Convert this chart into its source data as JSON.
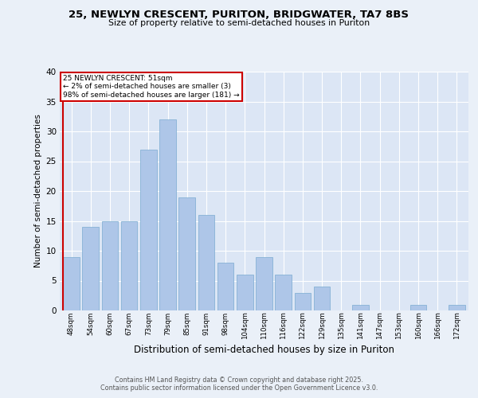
{
  "title1": "25, NEWLYN CRESCENT, PURITON, BRIDGWATER, TA7 8BS",
  "title2": "Size of property relative to semi-detached houses in Puriton",
  "xlabel": "Distribution of semi-detached houses by size in Puriton",
  "ylabel": "Number of semi-detached properties",
  "footer1": "Contains HM Land Registry data © Crown copyright and database right 2025.",
  "footer2": "Contains public sector information licensed under the Open Government Licence v3.0.",
  "annotation_title": "25 NEWLYN CRESCENT: 51sqm",
  "annotation_line2": "← 2% of semi-detached houses are smaller (3)",
  "annotation_line3": "98% of semi-detached houses are larger (181) →",
  "bar_labels": [
    "48sqm",
    "54sqm",
    "60sqm",
    "67sqm",
    "73sqm",
    "79sqm",
    "85sqm",
    "91sqm",
    "98sqm",
    "104sqm",
    "110sqm",
    "116sqm",
    "122sqm",
    "129sqm",
    "135sqm",
    "141sqm",
    "147sqm",
    "153sqm",
    "160sqm",
    "166sqm",
    "172sqm"
  ],
  "bar_values": [
    9,
    14,
    15,
    15,
    27,
    32,
    19,
    16,
    8,
    6,
    9,
    6,
    3,
    4,
    0,
    1,
    0,
    0,
    1,
    0,
    1
  ],
  "bar_color": "#aec6e8",
  "bar_edge_color": "#7aaad0",
  "highlight_color": "#cc0000",
  "annotation_box_color": "#cc0000",
  "background_color": "#eaf0f8",
  "plot_bg_color": "#dce6f5",
  "ylim": [
    0,
    40
  ],
  "yticks": [
    0,
    5,
    10,
    15,
    20,
    25,
    30,
    35,
    40
  ]
}
